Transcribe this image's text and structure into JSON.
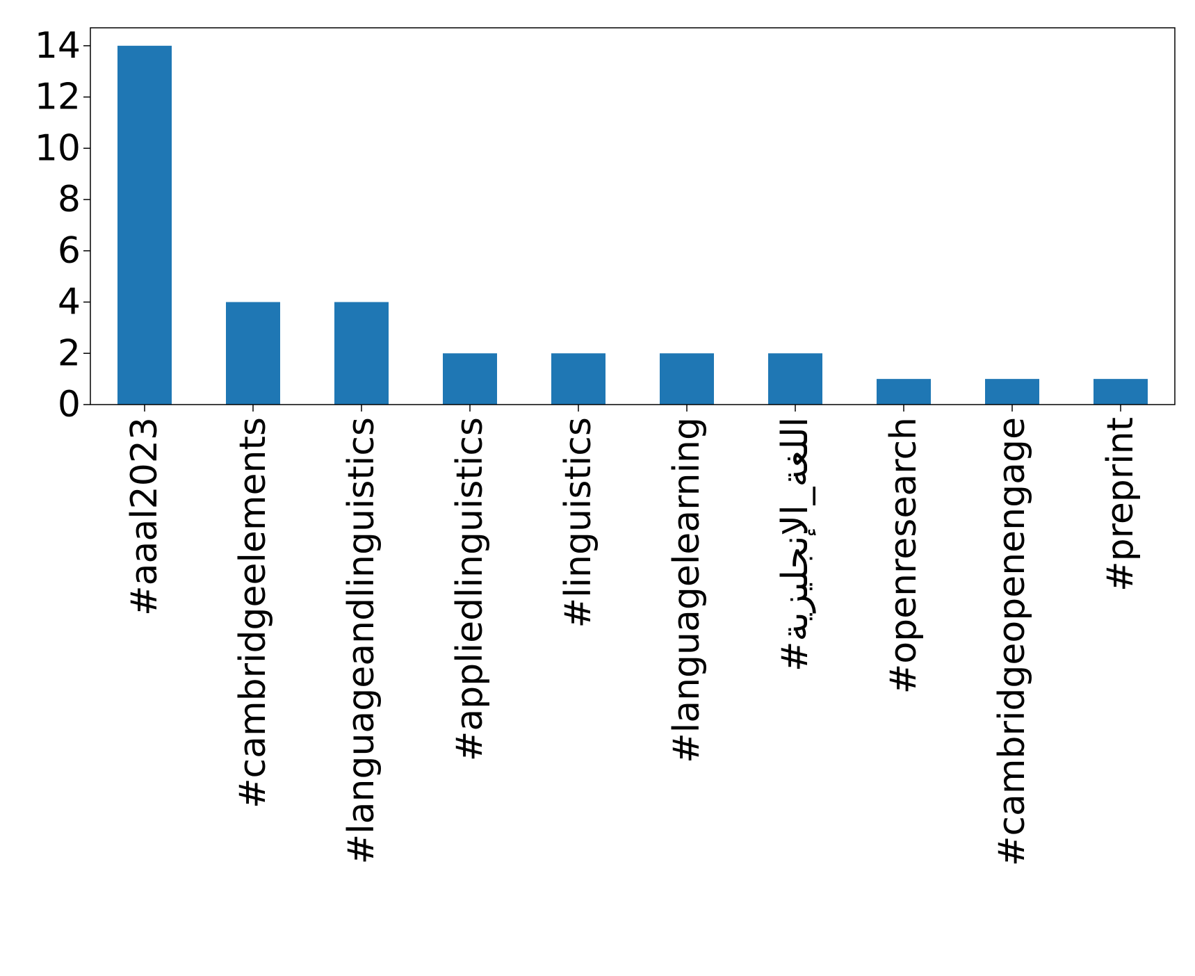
{
  "chart_data": {
    "type": "bar",
    "categories": [
      "#aaal2023",
      "#cambridgeelements",
      "#languageandlinguistics",
      "#appliedlinguistics",
      "#linguistics",
      "#languagelearning",
      "#اللغة_الإنجليزية",
      "#openresearch",
      "#cambridgeopenengage",
      "#preprint"
    ],
    "values": [
      14,
      4,
      4,
      2,
      2,
      2,
      2,
      1,
      1,
      1
    ],
    "ylim": [
      0,
      14.7
    ],
    "yticks": [
      0,
      2,
      4,
      6,
      8,
      10,
      12,
      14
    ],
    "bar_color": "#1f77b4",
    "grid": false,
    "legend": false
  }
}
